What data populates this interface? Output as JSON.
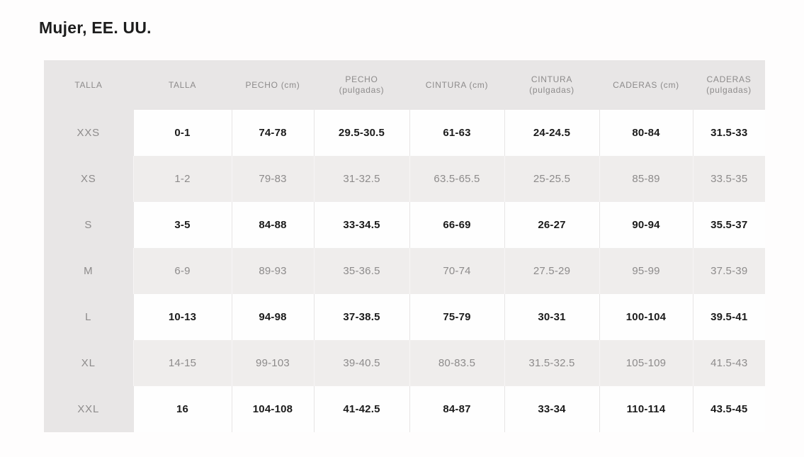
{
  "page": {
    "title": "Mujer, EE. UU."
  },
  "colors": {
    "header_bg": "#e8e6e6",
    "shaded_row_bg": "#efedec",
    "light_row_bg": "#fefefe",
    "text_dark": "#1b1b1b",
    "text_muted": "#8d8b8b",
    "page_bg": "#fefdfd"
  },
  "table": {
    "headers": [
      {
        "line1": "TALLA",
        "line2": ""
      },
      {
        "line1": "TALLA",
        "line2": ""
      },
      {
        "line1": "PECHO (cm)",
        "line2": ""
      },
      {
        "line1": "PECHO",
        "line2": "(pulgadas)"
      },
      {
        "line1": "CINTURA (cm)",
        "line2": ""
      },
      {
        "line1": "CINTURA",
        "line2": "(pulgadas)"
      },
      {
        "line1": "CADERAS (cm)",
        "line2": ""
      },
      {
        "line1": "CADERAS",
        "line2": "(pulgadas)"
      }
    ],
    "rows": [
      {
        "size": "XXS",
        "values": [
          "0-1",
          "74-78",
          "29.5-30.5",
          "61-63",
          "24-24.5",
          "80-84",
          "31.5-33"
        ]
      },
      {
        "size": "XS",
        "values": [
          "1-2",
          "79-83",
          "31-32.5",
          "63.5-65.5",
          "25-25.5",
          "85-89",
          "33.5-35"
        ]
      },
      {
        "size": "S",
        "values": [
          "3-5",
          "84-88",
          "33-34.5",
          "66-69",
          "26-27",
          "90-94",
          "35.5-37"
        ]
      },
      {
        "size": "M",
        "values": [
          "6-9",
          "89-93",
          "35-36.5",
          "70-74",
          "27.5-29",
          "95-99",
          "37.5-39"
        ]
      },
      {
        "size": "L",
        "values": [
          "10-13",
          "94-98",
          "37-38.5",
          "75-79",
          "30-31",
          "100-104",
          "39.5-41"
        ]
      },
      {
        "size": "XL",
        "values": [
          "14-15",
          "99-103",
          "39-40.5",
          "80-83.5",
          "31.5-32.5",
          "105-109",
          "41.5-43"
        ]
      },
      {
        "size": "XXL",
        "values": [
          "16",
          "104-108",
          "41-42.5",
          "84-87",
          "33-34",
          "110-114",
          "43.5-45"
        ]
      }
    ]
  }
}
